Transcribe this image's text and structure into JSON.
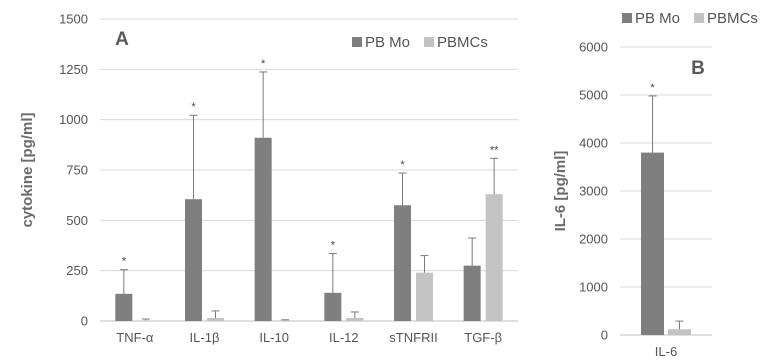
{
  "chart_data": [
    {
      "type": "bar",
      "panel_label": "A",
      "ylabel": "cytokine [pg/ml]",
      "xlabel": "",
      "ylim": [
        0,
        1500
      ],
      "yticks": [
        "0",
        "250",
        "500",
        "750",
        "1000",
        "1250",
        "1500"
      ],
      "ytick_values": [
        0,
        250,
        500,
        750,
        1000,
        1250,
        1500
      ],
      "categories": [
        "TNF-α",
        "IL-1β",
        "IL-10",
        "IL-12",
        "sTNFRII",
        "TGF-β"
      ],
      "series": [
        {
          "name": "PB Mo",
          "color": "#7f7f7f",
          "values": [
            135,
            605,
            910,
            140,
            575,
            275
          ],
          "error_upper": [
            255,
            1022,
            1237,
            335,
            735,
            412
          ]
        },
        {
          "name": "PBMCs",
          "color": "#c3c3c3",
          "values": [
            3,
            15,
            3,
            15,
            240,
            630
          ],
          "error_upper": [
            10,
            50,
            6,
            45,
            325,
            808
          ]
        }
      ],
      "annotations": [
        "*",
        "*",
        "*",
        "*",
        "*",
        "**"
      ],
      "legend": "top-right",
      "grid": true
    },
    {
      "type": "bar",
      "panel_label": "B",
      "ylabel": "IL-6 [pg/ml]",
      "xlabel": "",
      "ylim": [
        0,
        6000
      ],
      "yticks": [
        "0",
        "1000",
        "2000",
        "3000",
        "4000",
        "5000",
        "6000"
      ],
      "ytick_values": [
        0,
        1000,
        2000,
        3000,
        4000,
        5000,
        6000
      ],
      "categories": [
        "IL-6"
      ],
      "series": [
        {
          "name": "PB Mo",
          "color": "#7f7f7f",
          "values": [
            3800
          ],
          "error_upper": [
            4980
          ]
        },
        {
          "name": "PBMCs",
          "color": "#c3c3c3",
          "values": [
            120
          ],
          "error_upper": [
            290
          ]
        }
      ],
      "annotations": [
        "*"
      ],
      "legend": "top",
      "grid": true
    }
  ]
}
